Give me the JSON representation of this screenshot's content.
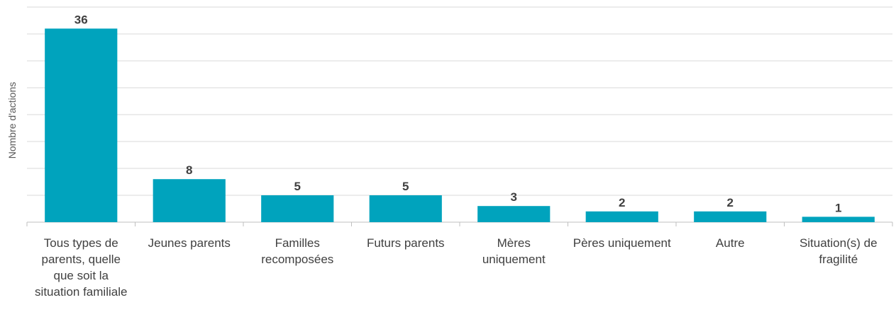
{
  "chart_data": {
    "type": "bar",
    "ylabel": "Nombre d'actions",
    "categories": [
      "Tous types de parents, quelle que soit la situation familiale",
      "Jeunes parents",
      "Familles recomposées",
      "Futurs parents",
      "Mères uniquement",
      "Pères uniquement",
      "Autre",
      "Situation(s) de fragilité"
    ],
    "values": [
      36,
      8,
      5,
      5,
      3,
      2,
      2,
      1
    ],
    "ylim": [
      0,
      40
    ],
    "grid": true,
    "bar_color": "#00a3bd"
  }
}
